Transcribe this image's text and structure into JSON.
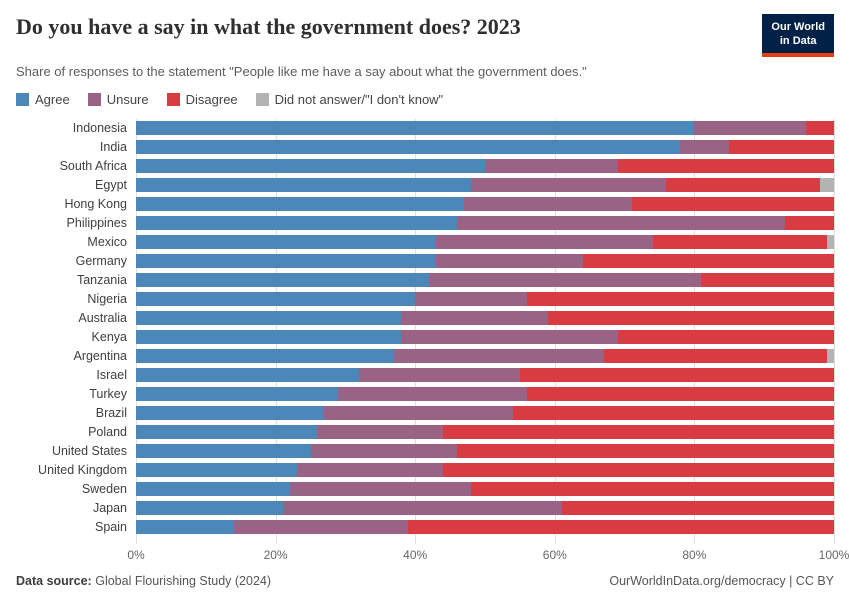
{
  "header": {
    "title": "Do you have a say in what the government does? 2023",
    "subtitle": "Share of responses to the statement \"People like me have a say about what the government does.\"",
    "logo": {
      "line1": "Our World",
      "line2": "in Data",
      "bg_color": "#002147",
      "accent_color": "#e63e13"
    }
  },
  "legend": [
    {
      "label": "Agree",
      "color": "#4b87b9"
    },
    {
      "label": "Unsure",
      "color": "#9a6285"
    },
    {
      "label": "Disagree",
      "color": "#d93b43"
    },
    {
      "label": "Did not answer/\"I don't know\"",
      "color": "#b3b3b3"
    }
  ],
  "chart_data": {
    "type": "bar",
    "stacked": true,
    "orientation": "horizontal",
    "title": "Do you have a say in what the government does? 2023",
    "xlabel": "",
    "ylabel": "",
    "xlim": [
      0,
      100
    ],
    "x_ticks": [
      "0%",
      "20%",
      "40%",
      "60%",
      "80%",
      "100%"
    ],
    "x_tick_values": [
      0,
      20,
      40,
      60,
      80,
      100
    ],
    "grid": true,
    "legend_position": "top",
    "categories": [
      "Indonesia",
      "India",
      "South Africa",
      "Egypt",
      "Hong Kong",
      "Philippines",
      "Mexico",
      "Germany",
      "Tanzania",
      "Nigeria",
      "Australia",
      "Kenya",
      "Argentina",
      "Israel",
      "Turkey",
      "Brazil",
      "Poland",
      "United States",
      "United Kingdom",
      "Sweden",
      "Japan",
      "Spain"
    ],
    "series": [
      {
        "name": "Agree",
        "color": "#4b87b9",
        "values": [
          80,
          78,
          50,
          48,
          47,
          46,
          43,
          43,
          42,
          40,
          38,
          38,
          37,
          32,
          29,
          27,
          26,
          25,
          23,
          22,
          21,
          14
        ]
      },
      {
        "name": "Unsure",
        "color": "#9a6285",
        "values": [
          16,
          7,
          19,
          28,
          24,
          47,
          31,
          21,
          39,
          16,
          21,
          31,
          30,
          23,
          27,
          27,
          18,
          21,
          21,
          26,
          40,
          25
        ]
      },
      {
        "name": "Disagree",
        "color": "#d93b43",
        "values": [
          4,
          15,
          31,
          22,
          29,
          7,
          25,
          36,
          19,
          44,
          41,
          31,
          32,
          45,
          44,
          46,
          56,
          54,
          56,
          52,
          39,
          61
        ]
      },
      {
        "name": "Did not answer/\"I don't know\"",
        "color": "#b3b3b3",
        "values": [
          0,
          0,
          0,
          2,
          0,
          0,
          1,
          0,
          0,
          0,
          0,
          0,
          1,
          0,
          0,
          0,
          0,
          0,
          0,
          0,
          0,
          0
        ]
      }
    ]
  },
  "footer": {
    "source_label": "Data source:",
    "source": "Global Flourishing Study (2024)",
    "right": "OurWorldInData.org/democracy | CC BY"
  }
}
